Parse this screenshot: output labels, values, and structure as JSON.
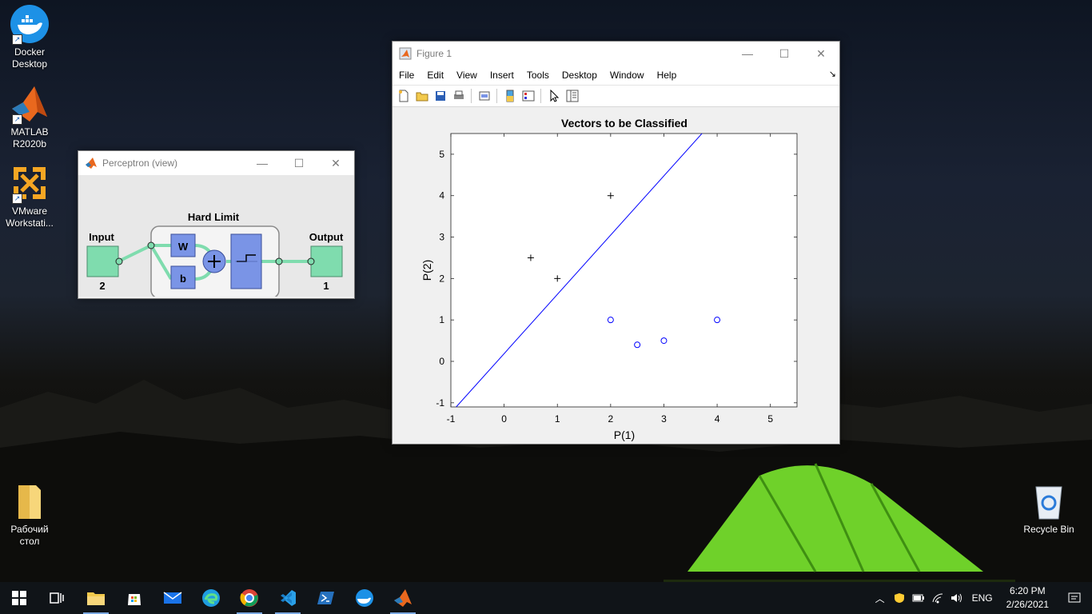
{
  "desktop": {
    "icons": [
      {
        "label": "Docker Desktop"
      },
      {
        "label": "MATLAB R2020b"
      },
      {
        "label": "VMware Workstati..."
      },
      {
        "label": "Рабочий стол"
      },
      {
        "label": "Recycle Bin"
      }
    ]
  },
  "perceptron": {
    "title": "Perceptron (view)",
    "hard_limit": "Hard Limit",
    "input": "Input",
    "input_size": "2",
    "output": "Output",
    "output_size": "1",
    "layer_size": "1",
    "w": "W",
    "b": "b"
  },
  "figure": {
    "title": "Figure 1",
    "menu": [
      "File",
      "Edit",
      "View",
      "Insert",
      "Tools",
      "Desktop",
      "Window",
      "Help"
    ],
    "toolbar_icons": [
      "new-figure-icon",
      "open-file-icon",
      "save-icon",
      "print-icon",
      "link-icon",
      "colorbar-icon",
      "legend-icon",
      "pointer-icon",
      "property-editor-icon"
    ]
  },
  "chart_data": {
    "type": "scatter",
    "title": "Vectors to be Classified",
    "xlabel": "P(1)",
    "ylabel": "P(2)",
    "xlim": [
      -1,
      5.5
    ],
    "ylim": [
      -1.1,
      5.5
    ],
    "xticks": [
      "-1",
      "0",
      "1",
      "2",
      "3",
      "4",
      "5"
    ],
    "yticks": [
      "-1",
      "0",
      "1",
      "2",
      "3",
      "4",
      "5"
    ],
    "series": [
      {
        "marker": "plus",
        "points": [
          [
            0.5,
            2.5
          ],
          [
            1,
            2
          ],
          [
            2,
            4
          ]
        ]
      },
      {
        "marker": "circle",
        "points": [
          [
            2,
            1
          ],
          [
            2.5,
            0.4
          ],
          [
            3,
            0.5
          ],
          [
            4,
            1
          ]
        ]
      }
    ],
    "line": {
      "points": [
        [
          -0.9,
          -1.1
        ],
        [
          3.75,
          5.55
        ]
      ]
    },
    "color": "#0000ff"
  },
  "taskbar": {
    "apps": [
      "start-icon",
      "task-view-icon",
      "file-explorer-icon",
      "store-icon",
      "mail-icon",
      "edge-icon",
      "chrome-icon",
      "vscode-icon",
      "powershell-icon",
      "docker-icon",
      "matlab-icon"
    ],
    "lang": "ENG",
    "time": "6:20 PM",
    "date": "2/26/2021"
  }
}
